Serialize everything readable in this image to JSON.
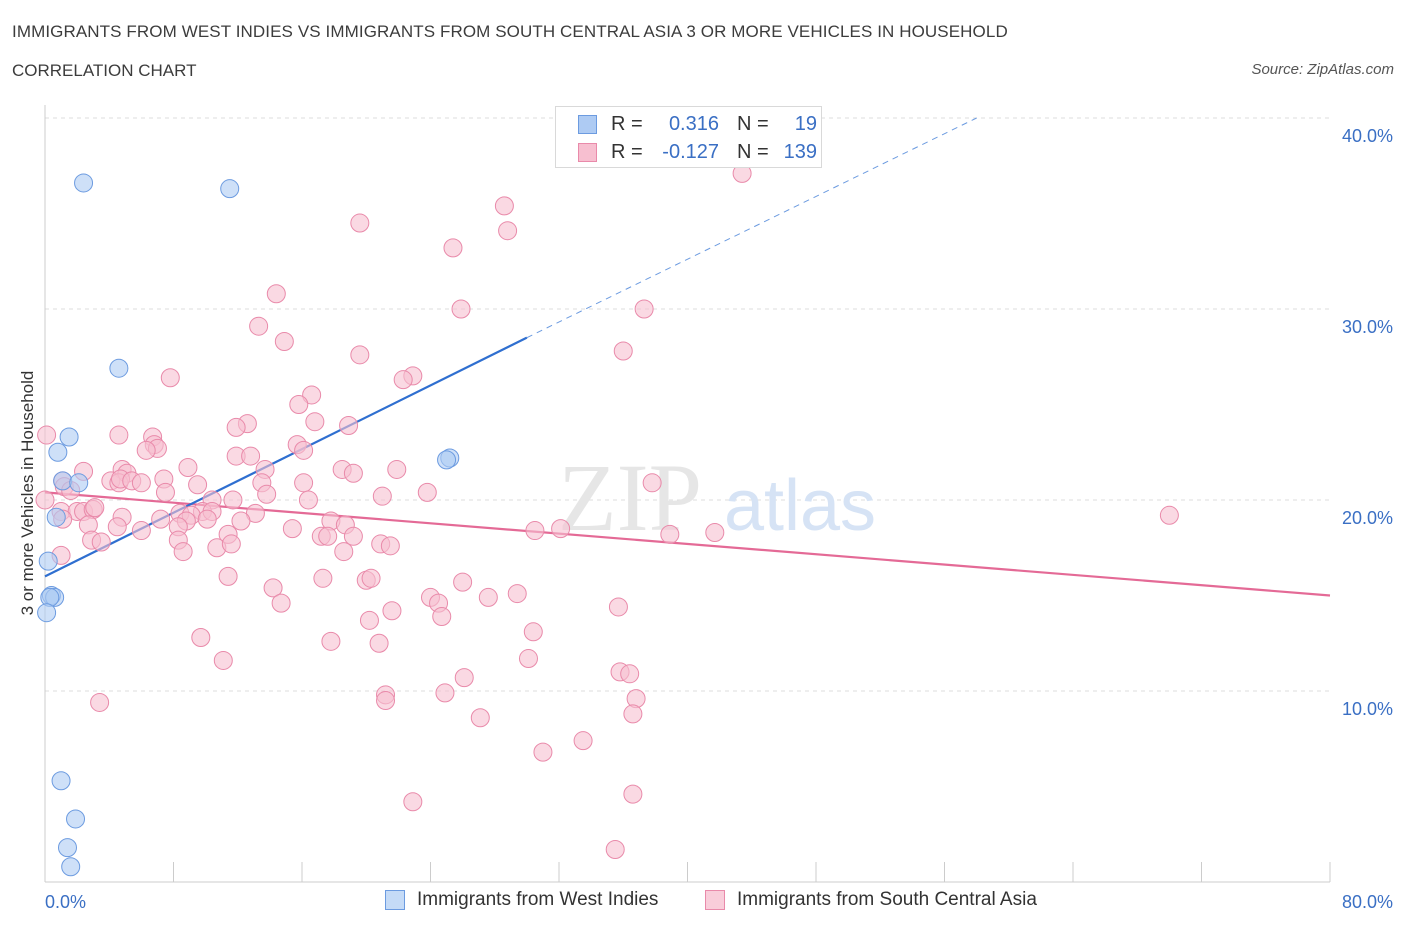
{
  "header": {
    "title": "IMMIGRANTS FROM WEST INDIES VS IMMIGRANTS FROM SOUTH CENTRAL ASIA 3 OR MORE VEHICLES IN HOUSEHOLD",
    "subtitle": "CORRELATION CHART",
    "source": "Source: ZipAtlas.com"
  },
  "watermark": {
    "zip": "ZIP",
    "atlas": "atlas"
  },
  "legend": {
    "rows": [
      {
        "r_label": "R =",
        "r_value": "0.316",
        "n_label": "N =",
        "n_value": "19"
      },
      {
        "r_label": "R =",
        "r_value": "-0.127",
        "n_label": "N =",
        "n_value": "139"
      }
    ]
  },
  "colors": {
    "blue_fill": "#aecbf3",
    "blue_stroke": "#6c9be0",
    "blue_line": "#2f6fd0",
    "pink_fill": "#f7bfd0",
    "pink_stroke": "#e98aaa",
    "pink_line": "#e46a96",
    "grid": "#dddddd",
    "tick_text": "#3a6fc4"
  },
  "chart_data": {
    "type": "scatter",
    "xlabel": "",
    "ylabel": "3 or more Vehicles in Household",
    "xlim": [
      0,
      80
    ],
    "ylim": [
      0,
      40
    ],
    "x_tick_labels": [
      "0.0%",
      "80.0%"
    ],
    "y_ticks": [
      10,
      20,
      30,
      40
    ],
    "y_tick_labels": [
      "10.0%",
      "20.0%",
      "30.0%",
      "40.0%"
    ],
    "grid": "horizontal dashed",
    "series": [
      {
        "name": "Immigrants from West Indies",
        "color": "blue",
        "points": [
          [
            2.4,
            36.6
          ],
          [
            11.5,
            36.3
          ],
          [
            4.6,
            26.9
          ],
          [
            1.5,
            23.3
          ],
          [
            0.8,
            22.5
          ],
          [
            25.2,
            22.2
          ],
          [
            25.0,
            22.1
          ],
          [
            1.1,
            21.0
          ],
          [
            2.1,
            20.9
          ],
          [
            0.7,
            19.1
          ],
          [
            0.2,
            16.8
          ],
          [
            0.4,
            15.0
          ],
          [
            0.6,
            14.9
          ],
          [
            0.3,
            14.9
          ],
          [
            0.1,
            14.1
          ],
          [
            1.0,
            5.3
          ],
          [
            1.9,
            3.3
          ],
          [
            1.4,
            1.8
          ],
          [
            1.6,
            0.8
          ]
        ],
        "trend": {
          "x": [
            0,
            30
          ],
          "y": [
            16.0,
            28.5
          ]
        },
        "trend_extension": {
          "x": [
            30,
            58
          ],
          "y": [
            28.5,
            40.0
          ]
        }
      },
      {
        "name": "Immigrants from South Central Asia",
        "color": "pink",
        "points": [
          [
            43.4,
            37.1
          ],
          [
            28.6,
            35.4
          ],
          [
            19.6,
            34.5
          ],
          [
            28.8,
            34.1
          ],
          [
            25.4,
            33.2
          ],
          [
            14.4,
            30.8
          ],
          [
            25.9,
            30.0
          ],
          [
            37.3,
            30.0
          ],
          [
            13.3,
            29.1
          ],
          [
            14.9,
            28.3
          ],
          [
            19.6,
            27.6
          ],
          [
            36.0,
            27.8
          ],
          [
            7.8,
            26.4
          ],
          [
            22.9,
            26.5
          ],
          [
            22.3,
            26.3
          ],
          [
            16.6,
            25.5
          ],
          [
            15.8,
            25.0
          ],
          [
            12.6,
            24.0
          ],
          [
            18.9,
            23.9
          ],
          [
            11.9,
            23.8
          ],
          [
            16.8,
            24.1
          ],
          [
            4.6,
            23.4
          ],
          [
            6.7,
            23.3
          ],
          [
            0.1,
            23.4
          ],
          [
            6.8,
            22.9
          ],
          [
            7.0,
            22.7
          ],
          [
            6.3,
            22.6
          ],
          [
            15.7,
            22.9
          ],
          [
            16.1,
            22.6
          ],
          [
            11.9,
            22.3
          ],
          [
            12.8,
            22.3
          ],
          [
            2.4,
            21.5
          ],
          [
            4.8,
            21.6
          ],
          [
            5.1,
            21.4
          ],
          [
            8.9,
            21.7
          ],
          [
            13.7,
            21.6
          ],
          [
            18.5,
            21.6
          ],
          [
            19.2,
            21.4
          ],
          [
            21.9,
            21.6
          ],
          [
            1.1,
            21.0
          ],
          [
            4.1,
            21.0
          ],
          [
            4.6,
            20.9
          ],
          [
            4.7,
            21.1
          ],
          [
            5.4,
            21.0
          ],
          [
            6.0,
            20.9
          ],
          [
            7.4,
            21.1
          ],
          [
            9.5,
            20.8
          ],
          [
            13.5,
            20.9
          ],
          [
            16.1,
            20.9
          ],
          [
            37.8,
            20.9
          ],
          [
            1.2,
            20.7
          ],
          [
            1.6,
            20.5
          ],
          [
            7.5,
            20.4
          ],
          [
            10.4,
            20.0
          ],
          [
            13.8,
            20.3
          ],
          [
            21.0,
            20.2
          ],
          [
            23.8,
            20.4
          ],
          [
            0.0,
            20.0
          ],
          [
            9.8,
            19.4
          ],
          [
            11.7,
            20.0
          ],
          [
            16.4,
            20.0
          ],
          [
            1.0,
            19.4
          ],
          [
            2.0,
            19.4
          ],
          [
            2.4,
            19.4
          ],
          [
            3.0,
            19.5
          ],
          [
            3.1,
            19.6
          ],
          [
            8.4,
            19.3
          ],
          [
            9.1,
            19.2
          ],
          [
            10.4,
            19.4
          ],
          [
            13.1,
            19.3
          ],
          [
            70.0,
            19.2
          ],
          [
            1.1,
            19.0
          ],
          [
            4.8,
            19.1
          ],
          [
            7.2,
            19.0
          ],
          [
            8.8,
            18.9
          ],
          [
            12.2,
            18.9
          ],
          [
            17.8,
            18.9
          ],
          [
            2.7,
            18.7
          ],
          [
            4.5,
            18.6
          ],
          [
            8.3,
            18.6
          ],
          [
            10.1,
            19.0
          ],
          [
            15.4,
            18.5
          ],
          [
            18.7,
            18.7
          ],
          [
            6.0,
            18.4
          ],
          [
            11.4,
            18.2
          ],
          [
            17.2,
            18.1
          ],
          [
            17.6,
            18.1
          ],
          [
            19.2,
            18.1
          ],
          [
            30.5,
            18.4
          ],
          [
            32.1,
            18.5
          ],
          [
            38.9,
            18.2
          ],
          [
            41.7,
            18.3
          ],
          [
            2.9,
            17.9
          ],
          [
            3.5,
            17.8
          ],
          [
            8.3,
            17.9
          ],
          [
            10.7,
            17.5
          ],
          [
            11.6,
            17.7
          ],
          [
            20.9,
            17.7
          ],
          [
            21.5,
            17.6
          ],
          [
            1.0,
            17.1
          ],
          [
            8.6,
            17.3
          ],
          [
            18.6,
            17.3
          ],
          [
            11.4,
            16.0
          ],
          [
            17.3,
            15.9
          ],
          [
            20.0,
            15.8
          ],
          [
            20.3,
            15.9
          ],
          [
            26.0,
            15.7
          ],
          [
            14.2,
            15.4
          ],
          [
            29.4,
            15.1
          ],
          [
            24.0,
            14.9
          ],
          [
            27.6,
            14.9
          ],
          [
            14.7,
            14.6
          ],
          [
            24.5,
            14.6
          ],
          [
            35.7,
            14.4
          ],
          [
            21.6,
            14.2
          ],
          [
            20.2,
            13.7
          ],
          [
            24.7,
            13.9
          ],
          [
            30.4,
            13.1
          ],
          [
            9.7,
            12.8
          ],
          [
            17.8,
            12.6
          ],
          [
            20.8,
            12.5
          ],
          [
            11.1,
            11.6
          ],
          [
            30.1,
            11.7
          ],
          [
            35.8,
            11.0
          ],
          [
            36.4,
            10.9
          ],
          [
            26.1,
            10.7
          ],
          [
            24.9,
            9.9
          ],
          [
            21.2,
            9.8
          ],
          [
            36.8,
            9.6
          ],
          [
            21.2,
            9.5
          ],
          [
            3.4,
            9.4
          ],
          [
            27.1,
            8.6
          ],
          [
            36.6,
            8.8
          ],
          [
            33.5,
            7.4
          ],
          [
            31.0,
            6.8
          ],
          [
            22.9,
            4.2
          ],
          [
            36.6,
            4.6
          ],
          [
            35.5,
            1.7
          ]
        ],
        "trend": {
          "x": [
            0,
            80
          ],
          "y": [
            20.4,
            15.0
          ]
        }
      }
    ]
  },
  "bottom_legend": [
    {
      "label": "Immigrants from West Indies"
    },
    {
      "label": "Immigrants from South Central Asia"
    }
  ]
}
